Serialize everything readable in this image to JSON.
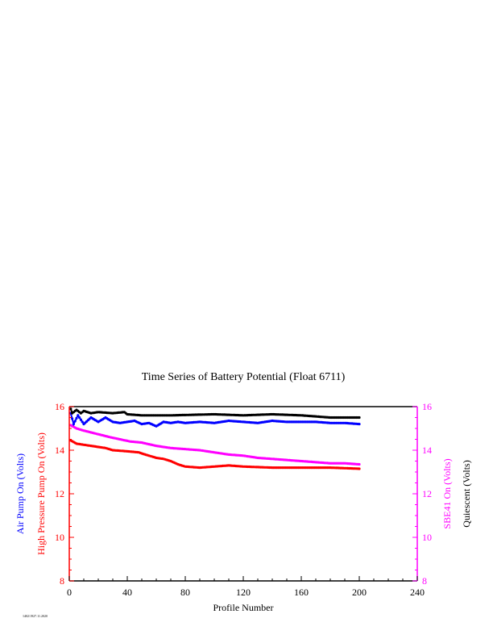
{
  "chart_data": {
    "type": "line",
    "title": "Time Series of Battery Potential (Float 6711)",
    "xlabel": "Profile Number",
    "xlim": [
      0,
      240
    ],
    "x_ticks": [
      "0",
      "40",
      "80",
      "120",
      "160",
      "200",
      "240"
    ],
    "left_axis": {
      "ylim": [
        8,
        16
      ],
      "ticks": [
        "8",
        "10",
        "12",
        "14",
        "16"
      ],
      "color": "#ff0000",
      "labels": [
        {
          "text": "Air Pump On (Volts)",
          "color": "#0000ff"
        },
        {
          "text": "High Pressure Pump On (Volts)",
          "color": "#ff0000"
        }
      ]
    },
    "right_axis": {
      "ylim": [
        8,
        16
      ],
      "ticks": [
        "8",
        "10",
        "12",
        "14",
        "16"
      ],
      "color": "#ff00ff",
      "labels": [
        {
          "text": "SBE41 On (Volts)",
          "color": "#ff00ff"
        },
        {
          "text": "Quiescent (Volts)",
          "color": "#000000"
        }
      ]
    },
    "series": [
      {
        "color": "#ff00ff",
        "points": [
          [
            1,
            15.15
          ],
          [
            5,
            15.0
          ],
          [
            10,
            14.9
          ],
          [
            16,
            14.8
          ],
          [
            22,
            14.7
          ],
          [
            28,
            14.6
          ],
          [
            35,
            14.5
          ],
          [
            42,
            14.4
          ],
          [
            50,
            14.35
          ],
          [
            60,
            14.2
          ],
          [
            70,
            14.1
          ],
          [
            80,
            14.05
          ],
          [
            90,
            14.0
          ],
          [
            100,
            13.9
          ],
          [
            110,
            13.8
          ],
          [
            120,
            13.75
          ],
          [
            130,
            13.65
          ],
          [
            140,
            13.6
          ],
          [
            150,
            13.55
          ],
          [
            160,
            13.5
          ],
          [
            170,
            13.45
          ],
          [
            180,
            13.4
          ],
          [
            190,
            13.4
          ],
          [
            200,
            13.35
          ]
        ]
      },
      {
        "color": "#ff0000",
        "points": [
          [
            1,
            14.45
          ],
          [
            5,
            14.3
          ],
          [
            10,
            14.25
          ],
          [
            15,
            14.2
          ],
          [
            20,
            14.15
          ],
          [
            25,
            14.1
          ],
          [
            30,
            14.0
          ],
          [
            40,
            13.95
          ],
          [
            48,
            13.9
          ],
          [
            50,
            13.85
          ],
          [
            55,
            13.75
          ],
          [
            60,
            13.65
          ],
          [
            65,
            13.6
          ],
          [
            70,
            13.5
          ],
          [
            75,
            13.35
          ],
          [
            80,
            13.25
          ],
          [
            90,
            13.2
          ],
          [
            100,
            13.25
          ],
          [
            110,
            13.3
          ],
          [
            120,
            13.25
          ],
          [
            140,
            13.2
          ],
          [
            160,
            13.2
          ],
          [
            180,
            13.2
          ],
          [
            200,
            13.15
          ]
        ]
      },
      {
        "color": "#0000ff",
        "points": [
          [
            1,
            15.7
          ],
          [
            3,
            15.2
          ],
          [
            6,
            15.6
          ],
          [
            10,
            15.2
          ],
          [
            15,
            15.5
          ],
          [
            20,
            15.3
          ],
          [
            25,
            15.5
          ],
          [
            30,
            15.3
          ],
          [
            35,
            15.25
          ],
          [
            40,
            15.3
          ],
          [
            45,
            15.35
          ],
          [
            50,
            15.2
          ],
          [
            55,
            15.25
          ],
          [
            60,
            15.1
          ],
          [
            65,
            15.3
          ],
          [
            70,
            15.25
          ],
          [
            75,
            15.3
          ],
          [
            80,
            15.25
          ],
          [
            90,
            15.3
          ],
          [
            100,
            15.25
          ],
          [
            110,
            15.35
          ],
          [
            120,
            15.3
          ],
          [
            130,
            15.25
          ],
          [
            140,
            15.35
          ],
          [
            150,
            15.3
          ],
          [
            160,
            15.3
          ],
          [
            170,
            15.3
          ],
          [
            180,
            15.25
          ],
          [
            190,
            15.25
          ],
          [
            200,
            15.2
          ]
        ]
      },
      {
        "color": "#000000",
        "points": [
          [
            1,
            15.9
          ],
          [
            2,
            15.7
          ],
          [
            5,
            15.85
          ],
          [
            8,
            15.7
          ],
          [
            10,
            15.8
          ],
          [
            15,
            15.7
          ],
          [
            20,
            15.75
          ],
          [
            30,
            15.7
          ],
          [
            38,
            15.75
          ],
          [
            40,
            15.65
          ],
          [
            50,
            15.6
          ],
          [
            70,
            15.6
          ],
          [
            100,
            15.65
          ],
          [
            120,
            15.6
          ],
          [
            140,
            15.65
          ],
          [
            160,
            15.6
          ],
          [
            170,
            15.55
          ],
          [
            180,
            15.5
          ],
          [
            190,
            15.5
          ],
          [
            200,
            15.5
          ]
        ]
      }
    ]
  },
  "footer": {
    "stamp": "1402/1927.11.2020"
  }
}
